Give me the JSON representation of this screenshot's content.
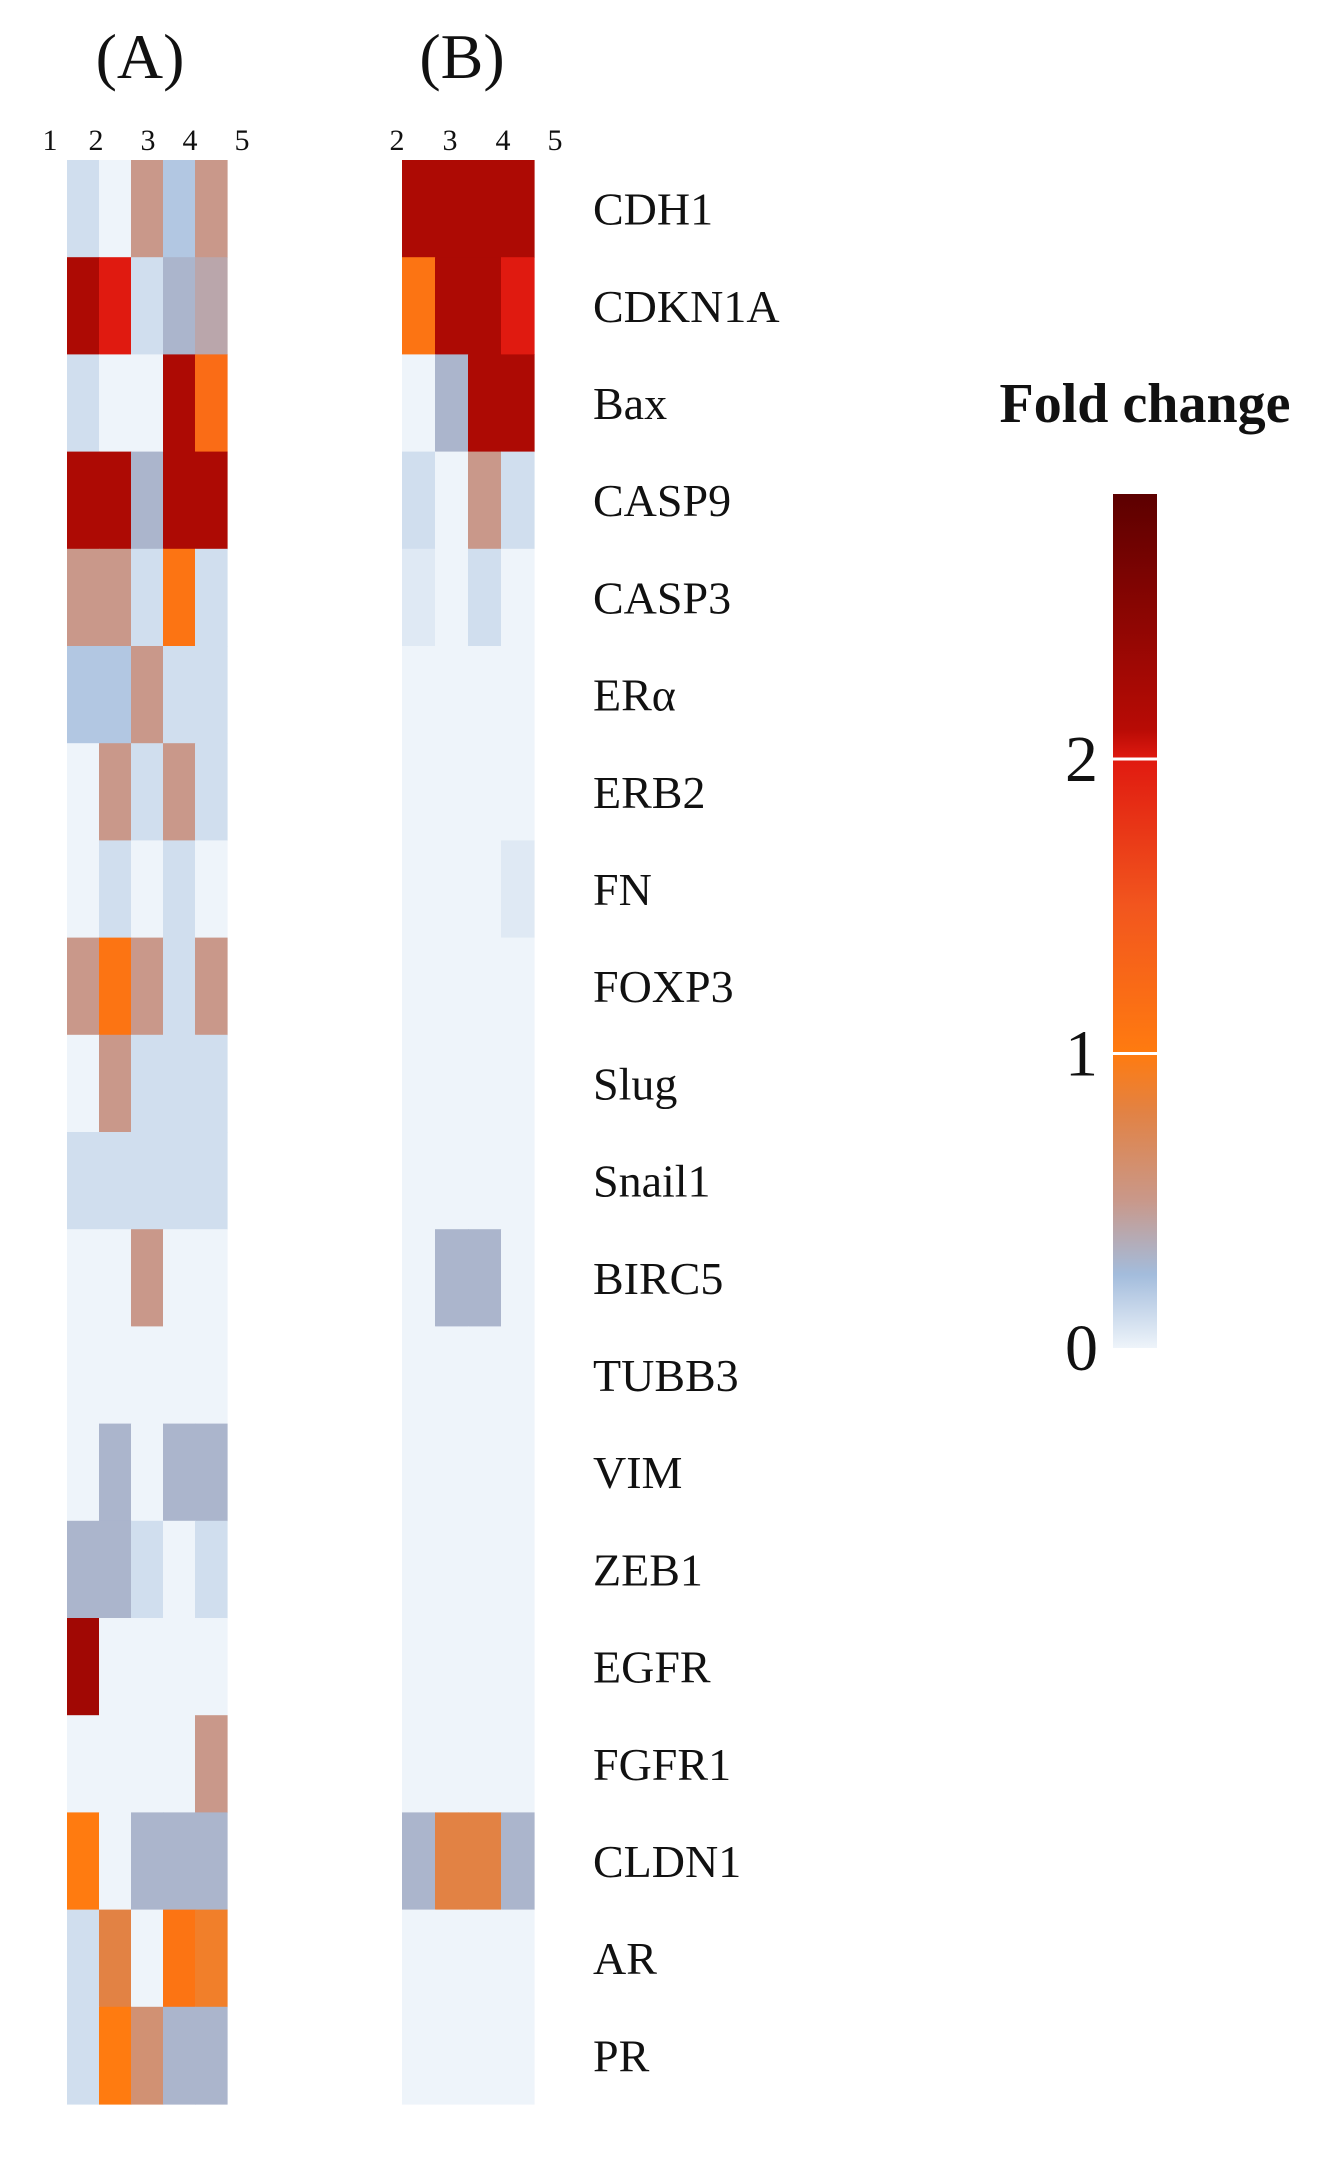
{
  "chart_data": [
    {
      "type": "heatmap",
      "title": "(A)",
      "columns": [
        "1",
        "2",
        "3",
        "4",
        "5"
      ],
      "rows": [
        "CDH1",
        "CDKN1A",
        "Bax",
        "CASP9",
        "CASP3",
        "ERα",
        "ERB2",
        "FN",
        "FOXP3",
        "Slug",
        "Snail1",
        "BIRC5",
        "TUBB3",
        "VIM",
        "ZEB1",
        "EGFR",
        "FGFR1",
        "CLDN1",
        "AR",
        "PR"
      ],
      "values": [
        [
          0.1,
          0.0,
          0.5,
          0.2,
          0.5
        ],
        [
          2.2,
          2.0,
          0.1,
          0.3,
          0.4
        ],
        [
          0.1,
          0.0,
          0.0,
          2.2,
          1.2
        ],
        [
          2.2,
          2.2,
          0.3,
          2.2,
          2.2
        ],
        [
          0.5,
          0.5,
          0.1,
          1.1,
          0.1
        ],
        [
          0.2,
          0.2,
          0.5,
          0.1,
          0.1
        ],
        [
          0.0,
          0.5,
          0.1,
          0.5,
          0.1
        ],
        [
          0.0,
          0.1,
          0.0,
          0.1,
          0.0
        ],
        [
          0.5,
          1.1,
          0.5,
          0.1,
          0.5
        ],
        [
          0.0,
          0.5,
          0.1,
          0.1,
          0.1
        ],
        [
          0.1,
          0.1,
          0.1,
          0.1,
          0.1
        ],
        [
          0.0,
          0.0,
          0.5,
          0.0,
          0.0
        ],
        [
          0.0,
          0.0,
          0.0,
          0.0,
          0.0
        ],
        [
          0.0,
          0.3,
          0.0,
          0.3,
          0.3
        ],
        [
          0.3,
          0.3,
          0.1,
          0.0,
          0.1
        ],
        [
          2.3,
          0.0,
          0.0,
          0.0,
          0.0
        ],
        [
          0.0,
          0.0,
          0.0,
          0.0,
          0.5
        ],
        [
          1.0,
          0.0,
          0.3,
          0.3,
          0.3
        ],
        [
          0.1,
          0.8,
          0.0,
          1.1,
          0.9
        ],
        [
          0.1,
          1.0,
          0.6,
          0.3,
          0.3
        ]
      ]
    },
    {
      "type": "heatmap",
      "title": "(B)",
      "columns": [
        "2",
        "3",
        "4",
        "5"
      ],
      "rows": [
        "CDH1",
        "CDKN1A",
        "Bax",
        "CASP9",
        "CASP3",
        "ERα",
        "ERB2",
        "FN",
        "FOXP3",
        "Slug",
        "Snail1",
        "BIRC5",
        "TUBB3",
        "VIM",
        "ZEB1",
        "EGFR",
        "FGFR1",
        "CLDN1",
        "AR",
        "PR"
      ],
      "values": [
        [
          2.2,
          2.2,
          2.2,
          2.2
        ],
        [
          1.1,
          2.2,
          2.2,
          2.0
        ],
        [
          0.0,
          0.3,
          2.2,
          2.2
        ],
        [
          0.1,
          0.0,
          0.5,
          0.1
        ],
        [
          0.05,
          0.0,
          0.1,
          0.0
        ],
        [
          0.0,
          0.0,
          0.0,
          0.0
        ],
        [
          0.0,
          0.0,
          0.0,
          0.0
        ],
        [
          0.0,
          0.0,
          0.0,
          0.05
        ],
        [
          0.0,
          0.0,
          0.0,
          0.0
        ],
        [
          0.0,
          0.0,
          0.0,
          0.0
        ],
        [
          0.0,
          0.0,
          0.0,
          0.0
        ],
        [
          0.0,
          0.3,
          0.3,
          0.0
        ],
        [
          0.0,
          0.0,
          0.0,
          0.0
        ],
        [
          0.0,
          0.0,
          0.0,
          0.0
        ],
        [
          0.0,
          0.0,
          0.0,
          0.0
        ],
        [
          0.0,
          0.0,
          0.0,
          0.0
        ],
        [
          0.0,
          0.0,
          0.0,
          0.0
        ],
        [
          0.3,
          0.8,
          0.8,
          0.3
        ],
        [
          0.0,
          0.0,
          0.0,
          0.0
        ],
        [
          0.0,
          0.0,
          0.0,
          0.0
        ]
      ]
    }
  ],
  "legend": {
    "title": "Fold change",
    "ticks": [
      "0",
      "1",
      "2"
    ],
    "range": [
      0,
      2.9
    ],
    "colors": {
      "0": "#eef4fa",
      "0.25": "#a3bcdc",
      "0.5": "#c9988a",
      "0.8": "#e28244",
      "1.0": "#ff7b10",
      "1.5": "#f2561e",
      "2.0": "#e01a10",
      "2.1": "#b80b05",
      "2.9": "#5c0000"
    }
  }
}
